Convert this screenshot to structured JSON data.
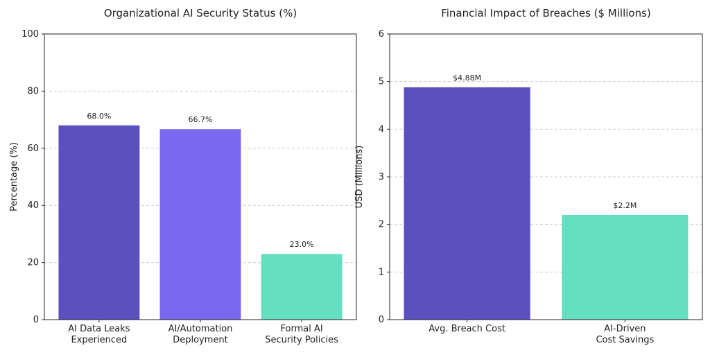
{
  "chart_data": [
    {
      "type": "bar",
      "title": "Organizational AI Security Status (%)",
      "y_label": "Percentage (%)",
      "categories": [
        "AI Data Leaks\nExperienced",
        "AI/Automation\nDeployment",
        "Formal AI\nSecurity Policies"
      ],
      "values": [
        68.0,
        66.7,
        23.0
      ],
      "value_labels": [
        "68.0%",
        "66.7%",
        "23.0%"
      ],
      "colors": [
        "#5b50be",
        "#7b68ee",
        "#64dfc2"
      ],
      "ylim": [
        0,
        100
      ],
      "yticks": [
        0,
        20,
        40,
        60,
        80,
        100
      ],
      "grid": true
    },
    {
      "type": "bar",
      "title": "Financial Impact of Breaches ($ Millions)",
      "y_label": "USD (Millions)",
      "categories": [
        "Avg. Breach Cost",
        "AI-Driven\nCost Savings"
      ],
      "values": [
        4.88,
        2.2
      ],
      "value_labels": [
        "$4.88M",
        "$2.2M"
      ],
      "colors": [
        "#5b50be",
        "#64dfc2"
      ],
      "ylim": [
        0,
        6
      ],
      "yticks": [
        0,
        1,
        2,
        3,
        4,
        5,
        6
      ],
      "grid": true
    }
  ]
}
